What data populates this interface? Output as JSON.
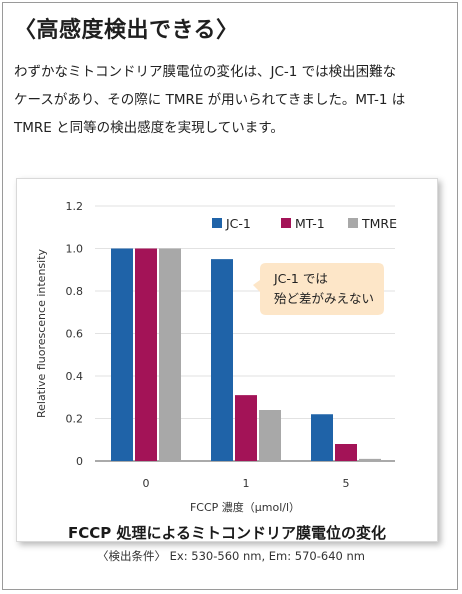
{
  "heading": "〈高感度検出できる〉",
  "body_lines": [
    "わずかなミトコンドリア膜電位の変化は、JC-1 では検出困難な",
    "ケースがあり、その際に TMRE が用いられてきました。MT-1 は",
    "TMRE と同等の検出感度を実現しています。"
  ],
  "caption": "〈検出条件〉 Ex: 530-560 nm, Em: 570-640 nm",
  "colors": {
    "JC-1": "#1f63a8",
    "MT-1": "#a31357",
    "TMRE": "#a8a8a8",
    "callout_bg": "#fde6c8"
  },
  "chart_data": {
    "type": "bar",
    "title": "FCCP 処理によるミトコンドリア膜電位の変化",
    "xlabel": "FCCP 濃度（µmol/l）",
    "ylabel": "Relative fluorescence intensity",
    "categories": [
      "0",
      "1",
      "5"
    ],
    "ylim": [
      0,
      1.2
    ],
    "yticks": [
      "0",
      "0.2",
      "0.4",
      "0.6",
      "0.8",
      "1.0",
      "1.2"
    ],
    "grid": true,
    "legend_position": "top-right",
    "series": [
      {
        "name": "JC-1",
        "values": [
          1.0,
          0.95,
          0.22
        ]
      },
      {
        "name": "MT-1",
        "values": [
          1.0,
          0.31,
          0.08
        ]
      },
      {
        "name": "TMRE",
        "values": [
          1.0,
          0.24,
          0.01
        ]
      }
    ],
    "annotation": [
      "JC-1 では",
      "殆ど差がみえない"
    ]
  }
}
